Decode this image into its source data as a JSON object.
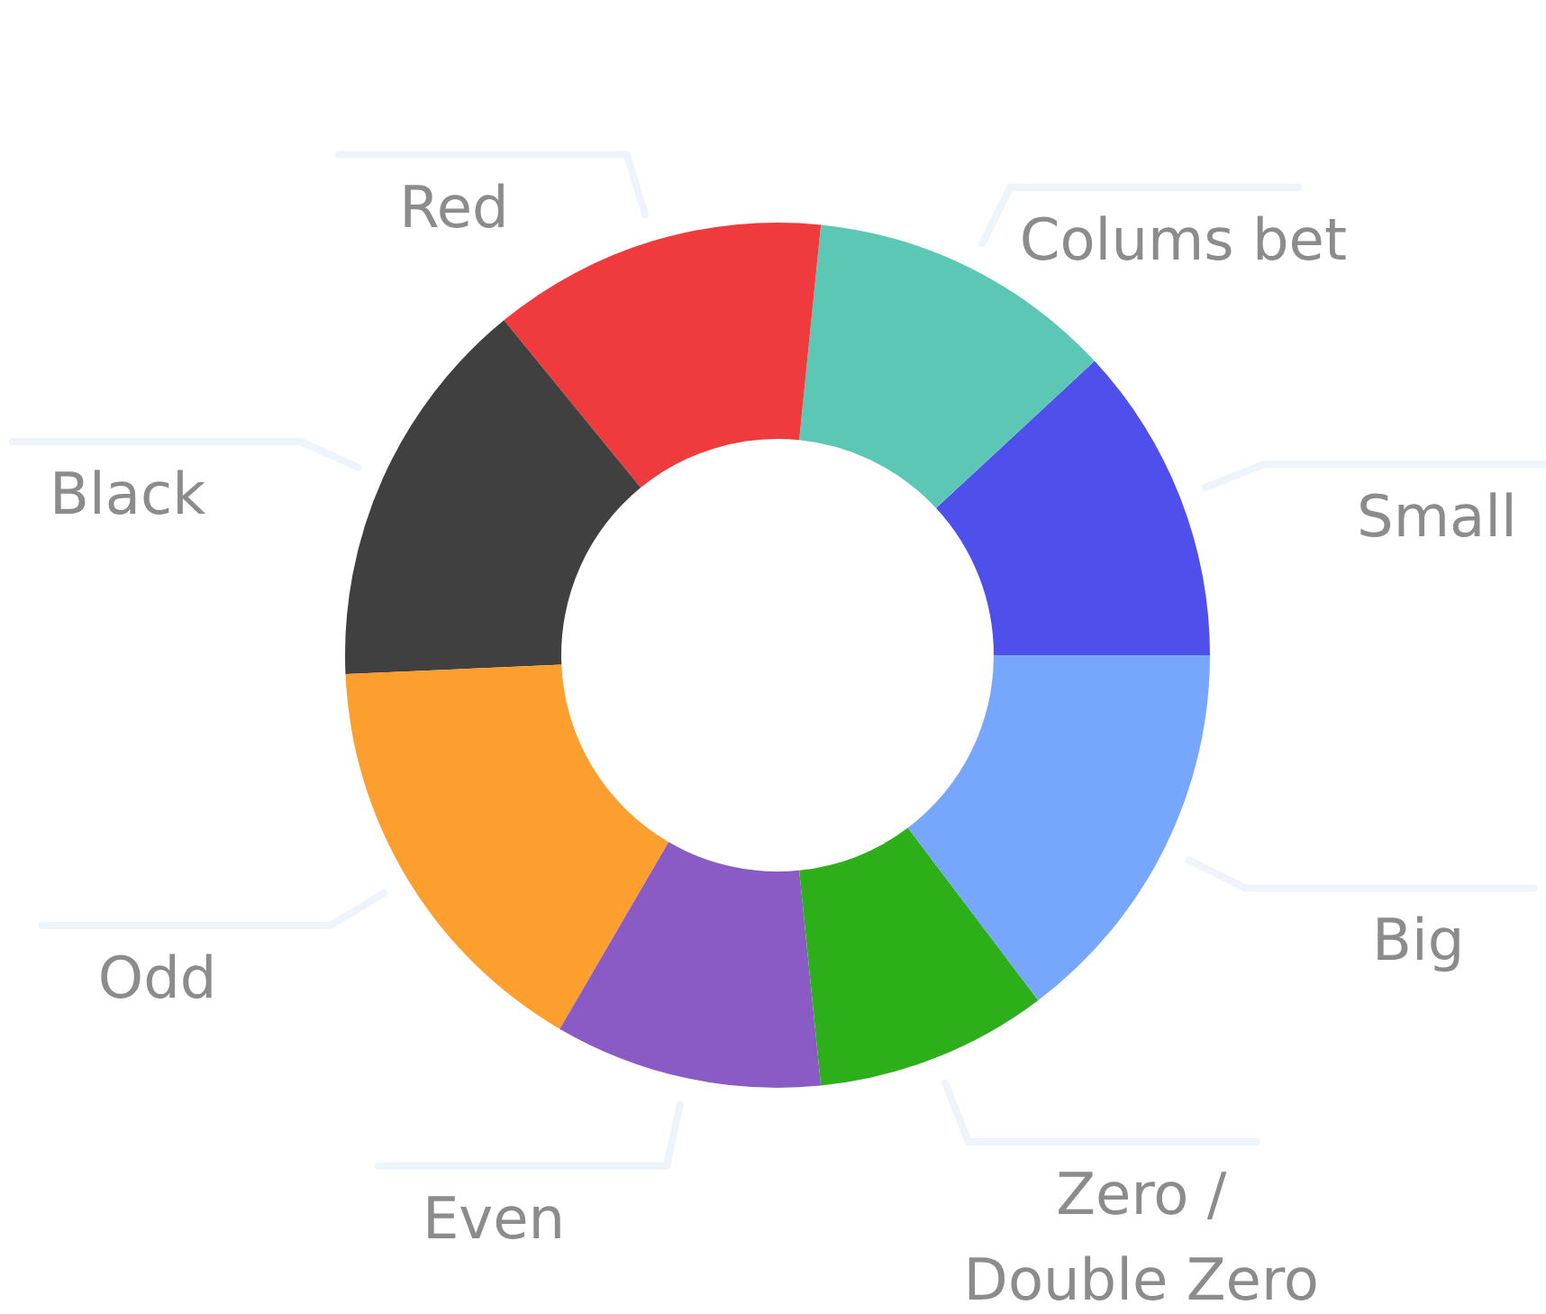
{
  "chart_data": {
    "type": "donut",
    "categories": [
      "Small",
      "Colums bet",
      "Red",
      "Black",
      "Odd",
      "Even",
      "Zero / Double Zero",
      "Big"
    ],
    "values": [
      11.9,
      11.5,
      12.5,
      14.8,
      15.9,
      10.0,
      8.7,
      14.7
    ],
    "colors": [
      "#4f4fec",
      "#5bc7b4",
      "#ef3b3e",
      "#404040",
      "#fd9f2e",
      "#8a5bc5",
      "#2daf1a",
      "#77a7fd"
    ]
  }
}
